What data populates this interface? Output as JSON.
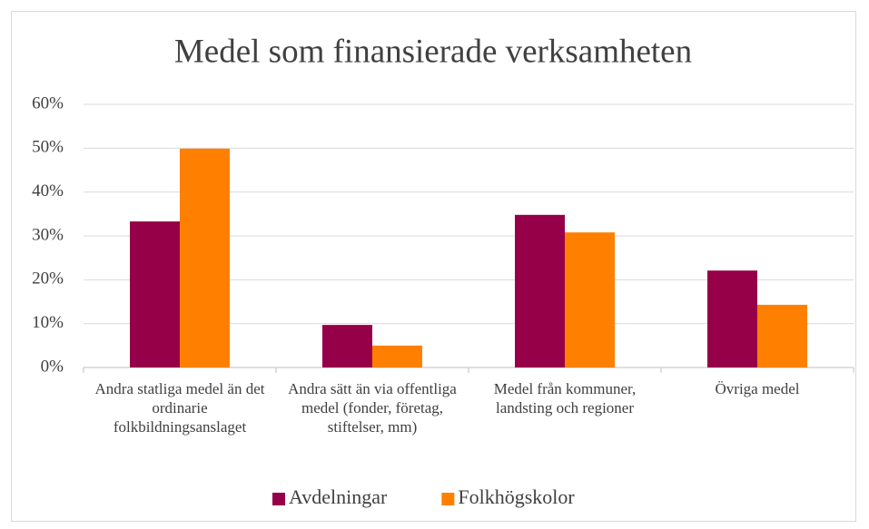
{
  "chart_data": {
    "type": "bar",
    "title": "Medel som finansierade verksamheten",
    "categories": [
      "Andra statliga medel än det ordinarie folkbildningsanslaget",
      "Andra sätt än via offentliga medel (fonder, företag, stiftelser, mm)",
      "Medel från kommuner, landsting och regioner",
      "Övriga medel"
    ],
    "series": [
      {
        "name": "Avdelningar",
        "color": "#960048",
        "values": [
          33.3,
          9.7,
          34.8,
          22.1
        ]
      },
      {
        "name": "Folkhögskolor",
        "color": "#ff8000",
        "values": [
          49.9,
          5.0,
          30.8,
          14.3
        ]
      }
    ],
    "ylim": [
      0,
      60
    ],
    "yticks": [
      {
        "value": 0,
        "label": "0%"
      },
      {
        "value": 10,
        "label": "10%"
      },
      {
        "value": 20,
        "label": "20%"
      },
      {
        "value": 30,
        "label": "30%"
      },
      {
        "value": 40,
        "label": "40%"
      },
      {
        "value": 50,
        "label": "50%"
      },
      {
        "value": 60,
        "label": "60%"
      }
    ],
    "grid": true,
    "legend": "bottom"
  }
}
